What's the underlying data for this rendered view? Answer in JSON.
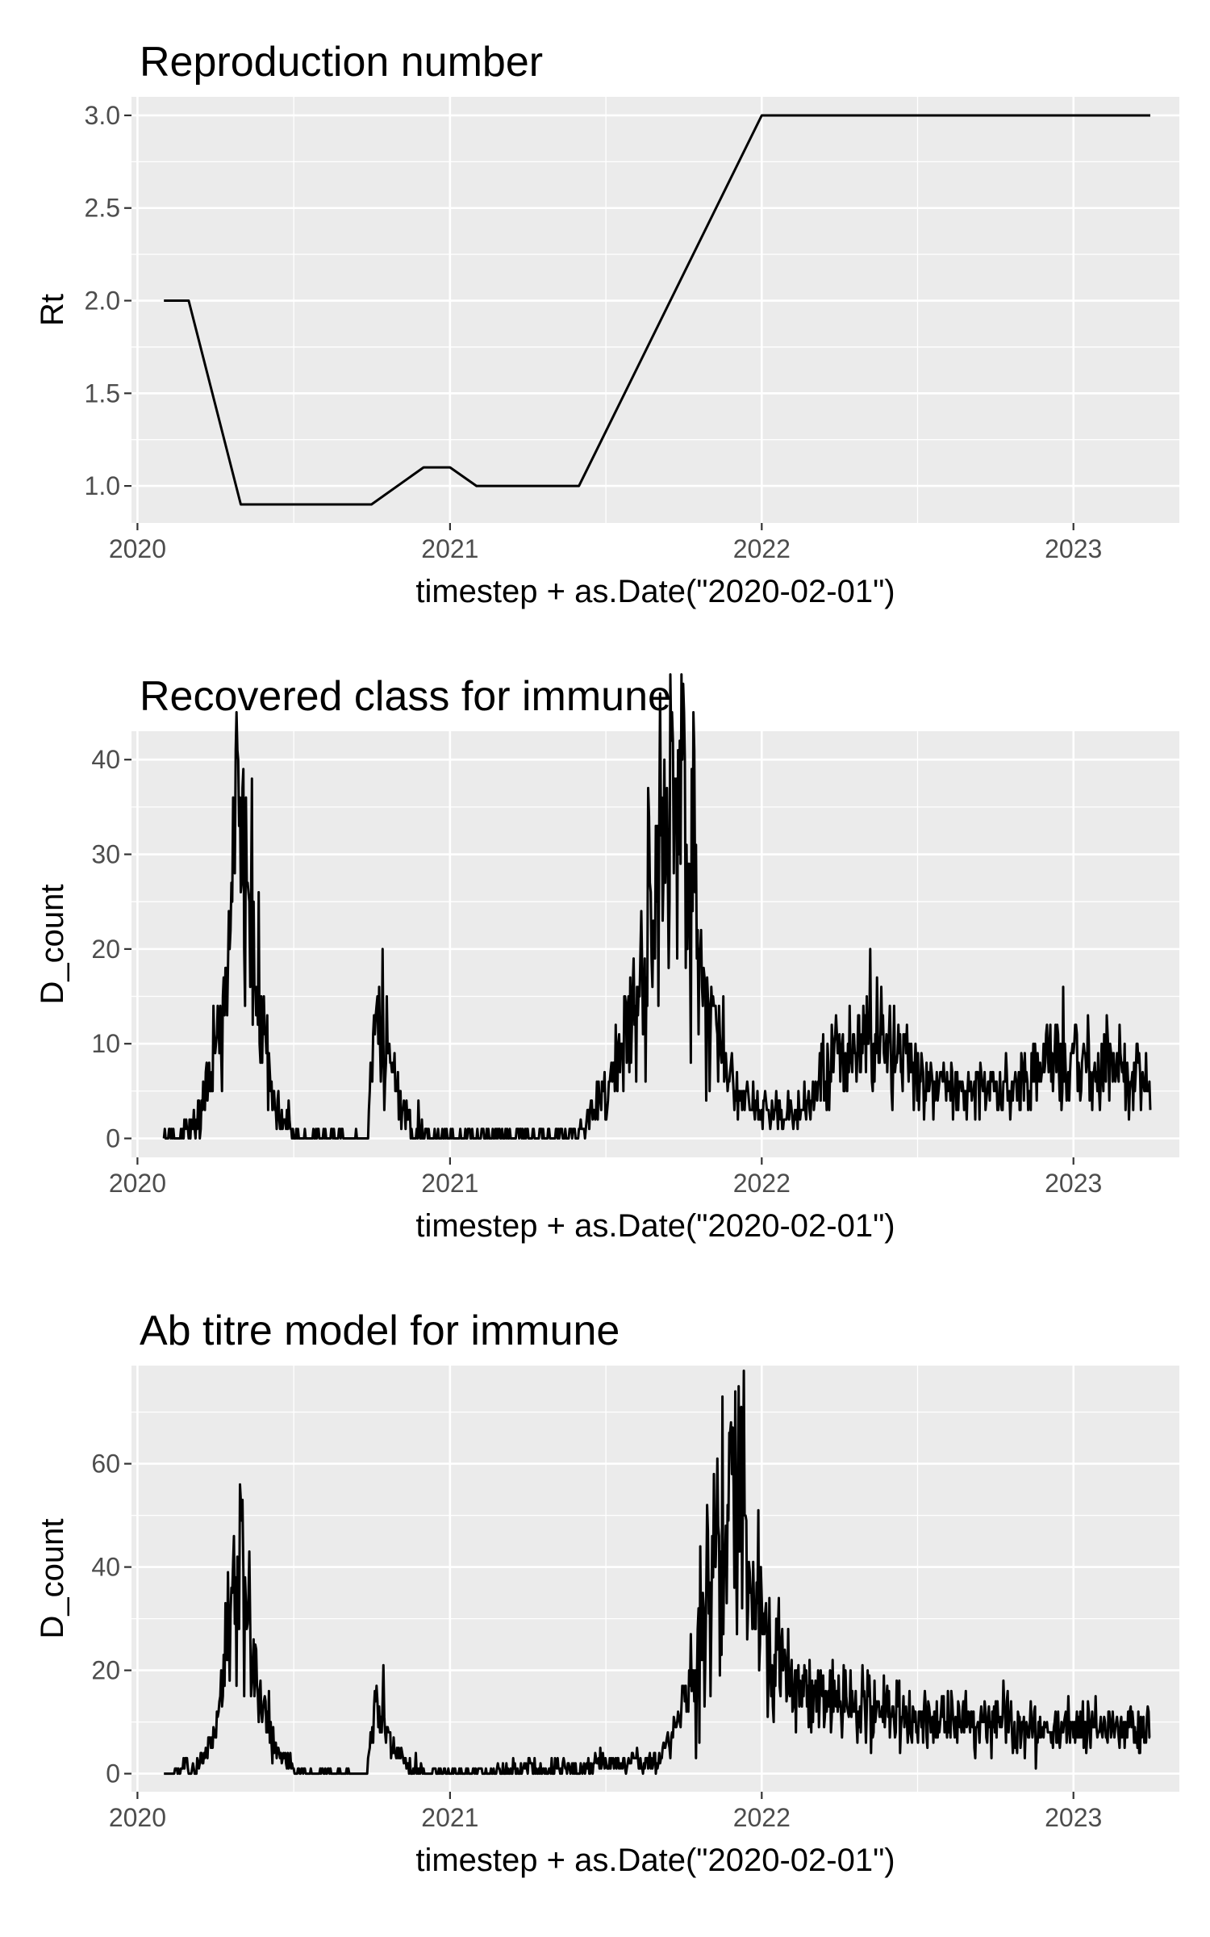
{
  "chart_data": [
    {
      "type": "line",
      "title": "Reproduction number",
      "xlabel": "timestep + as.Date(\"2020-02-01\")",
      "ylabel": "Rt",
      "x_type": "date",
      "xlim": [
        "2019-12-25",
        "2023-05-05"
      ],
      "ylim": [
        0.8,
        3.1
      ],
      "x_ticks": [
        "2020",
        "2021",
        "2022",
        "2023"
      ],
      "y_ticks": [
        "1.0",
        "1.5",
        "2.0",
        "2.5",
        "3.0"
      ],
      "y_tick_values": [
        1.0,
        1.5,
        2.0,
        2.5,
        3.0
      ],
      "y_decimals": 1,
      "grid": true,
      "series": [
        {
          "x": [
            "2020-02-01",
            "2020-03-01",
            "2020-05-01",
            "2020-10-01",
            "2020-12-01",
            "2021-01-01",
            "2021-02-01",
            "2021-06-01",
            "2022-01-01",
            "2023-04-01"
          ],
          "y": [
            2.0,
            2.0,
            0.9,
            0.9,
            1.1,
            1.1,
            1.0,
            1.0,
            3.0,
            3.0
          ]
        }
      ]
    },
    {
      "type": "line",
      "title": "Recovered class for immune",
      "xlabel": "timestep + as.Date(\"2020-02-01\")",
      "ylabel": "D_count",
      "x_type": "date",
      "xlim": [
        "2019-12-25",
        "2023-05-05"
      ],
      "ylim": [
        -2,
        43
      ],
      "x_ticks": [
        "2020",
        "2021",
        "2022",
        "2023"
      ],
      "y_ticks": [
        "0",
        "10",
        "20",
        "30",
        "40"
      ],
      "y_tick_values": [
        0,
        10,
        20,
        30,
        40
      ],
      "y_decimals": 0,
      "grid": true,
      "series": [
        {
          "x": [
            "2020-02-01",
            "2020-03-10",
            "2020-04-10",
            "2020-04-20",
            "2020-04-28",
            "2020-05-10",
            "2020-05-25",
            "2020-06-10",
            "2020-07-01",
            "2020-09-25",
            "2020-10-05",
            "2020-10-15",
            "2020-10-30",
            "2020-11-15",
            "2020-12-10",
            "2021-06-01",
            "2021-07-01",
            "2021-08-01",
            "2021-09-01",
            "2021-09-20",
            "2021-10-01",
            "2021-10-10",
            "2021-11-01",
            "2021-12-01",
            "2022-01-10",
            "2022-02-15",
            "2022-03-15",
            "2022-04-20",
            "2022-05-10",
            "2022-06-01",
            "2022-07-10",
            "2022-09-01",
            "2022-11-01",
            "2022-12-15",
            "2023-02-01",
            "2023-04-01"
          ],
          "y": [
            0,
            1,
            12,
            25,
            33,
            27,
            12,
            4,
            0.5,
            0,
            11,
            12,
            5,
            1,
            0.3,
            0.5,
            5,
            12,
            26,
            36,
            35,
            28,
            14,
            5,
            3,
            3,
            7,
            10,
            12,
            10,
            6,
            5,
            6,
            8,
            7,
            6
          ],
          "noise": 0.3,
          "noise_floor": 1.2,
          "min": 0,
          "peaks": [
            {
              "date": "2020-04-25",
              "value": 41
            },
            {
              "date": "2020-10-10",
              "value": 16
            },
            {
              "date": "2021-09-25",
              "value": 41
            },
            {
              "date": "2022-05-08",
              "value": 20
            },
            {
              "date": "2022-12-20",
              "value": 16
            }
          ]
        }
      ]
    },
    {
      "type": "line",
      "title": "Ab titre model for immune",
      "xlabel": "timestep + as.Date(\"2020-02-01\")",
      "ylabel": "D_count",
      "x_type": "date",
      "xlim": [
        "2019-12-25",
        "2023-05-05"
      ],
      "ylim": [
        -3.5,
        79
      ],
      "x_ticks": [
        "2020",
        "2021",
        "2022",
        "2023"
      ],
      "y_ticks": [
        "0",
        "20",
        "40",
        "60"
      ],
      "y_tick_values": [
        0,
        20,
        40,
        60
      ],
      "y_decimals": 0,
      "grid": true,
      "series": [
        {
          "x": [
            "2020-02-01",
            "2020-03-10",
            "2020-04-01",
            "2020-04-15",
            "2020-04-28",
            "2020-05-10",
            "2020-05-25",
            "2020-06-10",
            "2020-07-01",
            "2020-09-25",
            "2020-10-05",
            "2020-10-15",
            "2020-10-30",
            "2020-11-15",
            "2020-12-10",
            "2021-06-01",
            "2021-07-01",
            "2021-09-01",
            "2021-10-01",
            "2021-11-01",
            "2021-11-25",
            "2021-12-10",
            "2022-01-01",
            "2022-01-20",
            "2022-02-15",
            "2022-04-01",
            "2022-07-01",
            "2022-12-01",
            "2023-04-01"
          ],
          "y": [
            0,
            1,
            8,
            25,
            40,
            30,
            15,
            5,
            0.5,
            0,
            12,
            11,
            4,
            1,
            0.3,
            1,
            2,
            2,
            12,
            36,
            52,
            48,
            28,
            22,
            16,
            14,
            11,
            9,
            8
          ],
          "noise": 0.28,
          "noise_floor": 1.2,
          "min": 0,
          "peaks": [
            {
              "date": "2020-04-30",
              "value": 56
            },
            {
              "date": "2020-10-15",
              "value": 21
            },
            {
              "date": "2021-12-05",
              "value": 75
            }
          ]
        }
      ]
    }
  ]
}
